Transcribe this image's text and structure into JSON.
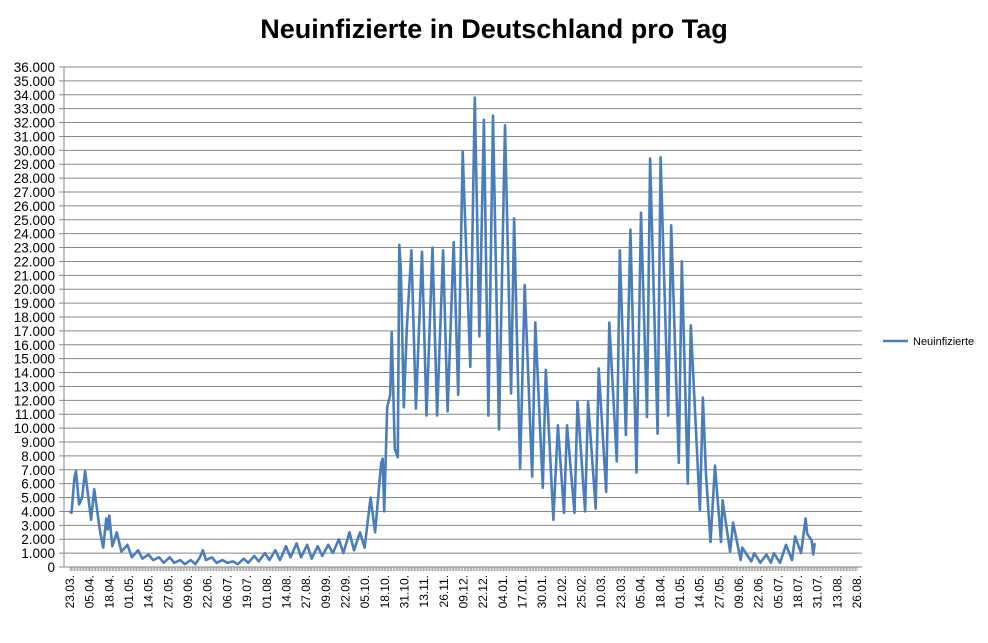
{
  "chart_data": {
    "type": "line",
    "title": "Neuinfizierte in Deutschland pro Tag",
    "xlabel": "",
    "ylabel": "",
    "ylim": [
      0,
      36000
    ],
    "ytick_step": 1000,
    "ytick_labels": [
      "0",
      "1.000",
      "2.000",
      "3.000",
      "4.000",
      "5.000",
      "6.000",
      "7.000",
      "8.000",
      "9.000",
      "10.000",
      "11.000",
      "12.000",
      "13.000",
      "14.000",
      "15.000",
      "16.000",
      "17.000",
      "18.000",
      "19.000",
      "20.000",
      "21.000",
      "22.000",
      "23.000",
      "24.000",
      "25.000",
      "26.000",
      "27.000",
      "28.000",
      "29.000",
      "30.000",
      "31.000",
      "32.000",
      "33.000",
      "34.000",
      "35.000",
      "36.000"
    ],
    "xlim": [
      "2020-03-23",
      "2021-08-26"
    ],
    "xtick_labels": [
      "23.03.",
      "05.04.",
      "18.04.",
      "01.05.",
      "14.05.",
      "27.05.",
      "09.06.",
      "22.06.",
      "06.07.",
      "19.07.",
      "01.08.",
      "14.08.",
      "27.08.",
      "09.09.",
      "22.09.",
      "05.10.",
      "18.10.",
      "31.10.",
      "13.11.",
      "26.11.",
      "09.12.",
      "22.12.",
      "04.01.",
      "17.01.",
      "30.01.",
      "12.02.",
      "25.02.",
      "10.03.",
      "23.03.",
      "05.04.",
      "18.04.",
      "01.05.",
      "14.05.",
      "27.05.",
      "09.06.",
      "22.06.",
      "05.07.",
      "18.07.",
      "31.07.",
      "13.08.",
      "26.08."
    ],
    "grid": true,
    "legend_position": "right",
    "line_color": "#4a7ebb",
    "grid_color": "#868686",
    "series": [
      {
        "name": "Neuinfizierte",
        "points": [
          [
            "2020-03-23",
            4000
          ],
          [
            "2020-03-24",
            3900
          ],
          [
            "2020-03-26",
            6500
          ],
          [
            "2020-03-27",
            6900
          ],
          [
            "2020-03-29",
            4500
          ],
          [
            "2020-03-31",
            5000
          ],
          [
            "2020-04-02",
            6900
          ],
          [
            "2020-04-06",
            3400
          ],
          [
            "2020-04-08",
            5600
          ],
          [
            "2020-04-12",
            2500
          ],
          [
            "2020-04-14",
            1400
          ],
          [
            "2020-04-16",
            3500
          ],
          [
            "2020-04-17",
            2700
          ],
          [
            "2020-04-18",
            3700
          ],
          [
            "2020-04-20",
            1500
          ],
          [
            "2020-04-23",
            2500
          ],
          [
            "2020-04-26",
            1100
          ],
          [
            "2020-04-30",
            1600
          ],
          [
            "2020-05-03",
            700
          ],
          [
            "2020-05-07",
            1200
          ],
          [
            "2020-05-10",
            600
          ],
          [
            "2020-05-14",
            900
          ],
          [
            "2020-05-17",
            500
          ],
          [
            "2020-05-21",
            700
          ],
          [
            "2020-05-24",
            300
          ],
          [
            "2020-05-28",
            700
          ],
          [
            "2020-05-31",
            300
          ],
          [
            "2020-06-04",
            500
          ],
          [
            "2020-06-07",
            200
          ],
          [
            "2020-06-11",
            500
          ],
          [
            "2020-06-14",
            200
          ],
          [
            "2020-06-17",
            700
          ],
          [
            "2020-06-19",
            1200
          ],
          [
            "2020-06-21",
            500
          ],
          [
            "2020-06-25",
            700
          ],
          [
            "2020-06-28",
            300
          ],
          [
            "2020-07-02",
            500
          ],
          [
            "2020-07-05",
            300
          ],
          [
            "2020-07-09",
            400
          ],
          [
            "2020-07-12",
            200
          ],
          [
            "2020-07-16",
            600
          ],
          [
            "2020-07-19",
            300
          ],
          [
            "2020-07-23",
            800
          ],
          [
            "2020-07-26",
            400
          ],
          [
            "2020-07-30",
            1000
          ],
          [
            "2020-08-02",
            500
          ],
          [
            "2020-08-06",
            1200
          ],
          [
            "2020-08-09",
            500
          ],
          [
            "2020-08-13",
            1500
          ],
          [
            "2020-08-16",
            700
          ],
          [
            "2020-08-20",
            1700
          ],
          [
            "2020-08-23",
            700
          ],
          [
            "2020-08-27",
            1600
          ],
          [
            "2020-08-30",
            600
          ],
          [
            "2020-09-03",
            1500
          ],
          [
            "2020-09-06",
            800
          ],
          [
            "2020-09-10",
            1600
          ],
          [
            "2020-09-13",
            1000
          ],
          [
            "2020-09-17",
            2000
          ],
          [
            "2020-09-20",
            1000
          ],
          [
            "2020-09-24",
            2500
          ],
          [
            "2020-09-27",
            1200
          ],
          [
            "2020-10-01",
            2500
          ],
          [
            "2020-10-04",
            1400
          ],
          [
            "2020-10-08",
            5000
          ],
          [
            "2020-10-11",
            2500
          ],
          [
            "2020-10-15",
            7500
          ],
          [
            "2020-10-16",
            7800
          ],
          [
            "2020-10-17",
            4000
          ],
          [
            "2020-10-19",
            11500
          ],
          [
            "2020-10-21",
            12400
          ],
          [
            "2020-10-22",
            16900
          ],
          [
            "2020-10-24",
            8500
          ],
          [
            "2020-10-26",
            7900
          ],
          [
            "2020-10-27",
            23200
          ],
          [
            "2020-10-28",
            21500
          ],
          [
            "2020-10-30",
            11500
          ],
          [
            "2020-11-01",
            17300
          ],
          [
            "2020-11-04",
            22800
          ],
          [
            "2020-11-07",
            11400
          ],
          [
            "2020-11-11",
            22700
          ],
          [
            "2020-11-14",
            10900
          ],
          [
            "2020-11-18",
            23000
          ],
          [
            "2020-11-21",
            10900
          ],
          [
            "2020-11-25",
            22800
          ],
          [
            "2020-11-28",
            11200
          ],
          [
            "2020-12-02",
            23400
          ],
          [
            "2020-12-05",
            12400
          ],
          [
            "2020-12-08",
            29900
          ],
          [
            "2020-12-13",
            14400
          ],
          [
            "2020-12-15",
            27600
          ],
          [
            "2020-12-16",
            33800
          ],
          [
            "2020-12-19",
            16600
          ],
          [
            "2020-12-22",
            32200
          ],
          [
            "2020-12-25",
            10900
          ],
          [
            "2020-12-28",
            32500
          ],
          [
            "2021-01-01",
            9900
          ],
          [
            "2021-01-05",
            31800
          ],
          [
            "2021-01-09",
            12500
          ],
          [
            "2021-01-11",
            25100
          ],
          [
            "2021-01-15",
            7100
          ],
          [
            "2021-01-18",
            20300
          ],
          [
            "2021-01-23",
            6500
          ],
          [
            "2021-01-25",
            17600
          ],
          [
            "2021-01-30",
            5700
          ],
          [
            "2021-02-01",
            14200
          ],
          [
            "2021-02-06",
            3400
          ],
          [
            "2021-02-09",
            10200
          ],
          [
            "2021-02-13",
            3900
          ],
          [
            "2021-02-15",
            10200
          ],
          [
            "2021-02-20",
            3900
          ],
          [
            "2021-02-22",
            11900
          ],
          [
            "2021-02-27",
            4000
          ],
          [
            "2021-03-01",
            11900
          ],
          [
            "2021-03-06",
            4200
          ],
          [
            "2021-03-08",
            14300
          ],
          [
            "2021-03-13",
            5400
          ],
          [
            "2021-03-15",
            17600
          ],
          [
            "2021-03-20",
            7600
          ],
          [
            "2021-03-22",
            22800
          ],
          [
            "2021-03-26",
            9500
          ],
          [
            "2021-03-29",
            24300
          ],
          [
            "2021-04-02",
            6800
          ],
          [
            "2021-04-05",
            25500
          ],
          [
            "2021-04-09",
            10800
          ],
          [
            "2021-04-11",
            29400
          ],
          [
            "2021-04-16",
            9600
          ],
          [
            "2021-04-18",
            29500
          ],
          [
            "2021-04-23",
            10900
          ],
          [
            "2021-04-25",
            24600
          ],
          [
            "2021-04-30",
            7500
          ],
          [
            "2021-05-02",
            22000
          ],
          [
            "2021-05-06",
            6000
          ],
          [
            "2021-05-08",
            17400
          ],
          [
            "2021-05-14",
            4100
          ],
          [
            "2021-05-16",
            12200
          ],
          [
            "2021-05-18",
            6800
          ],
          [
            "2021-05-21",
            1800
          ],
          [
            "2021-05-24",
            7300
          ],
          [
            "2021-05-28",
            1800
          ],
          [
            "2021-05-29",
            4800
          ],
          [
            "2021-06-03",
            1100
          ],
          [
            "2021-06-05",
            3200
          ],
          [
            "2021-06-10",
            500
          ],
          [
            "2021-06-11",
            1400
          ],
          [
            "2021-06-17",
            400
          ],
          [
            "2021-06-19",
            1000
          ],
          [
            "2021-06-23",
            300
          ],
          [
            "2021-06-27",
            900
          ],
          [
            "2021-06-30",
            300
          ],
          [
            "2021-07-02",
            1000
          ],
          [
            "2021-07-06",
            300
          ],
          [
            "2021-07-10",
            1600
          ],
          [
            "2021-07-14",
            500
          ],
          [
            "2021-07-16",
            2200
          ],
          [
            "2021-07-20",
            1000
          ],
          [
            "2021-07-23",
            3500
          ],
          [
            "2021-07-24",
            2400
          ],
          [
            "2021-07-27",
            1900
          ],
          [
            "2021-07-28",
            900
          ],
          [
            "2021-07-29",
            1700
          ]
        ]
      }
    ]
  }
}
